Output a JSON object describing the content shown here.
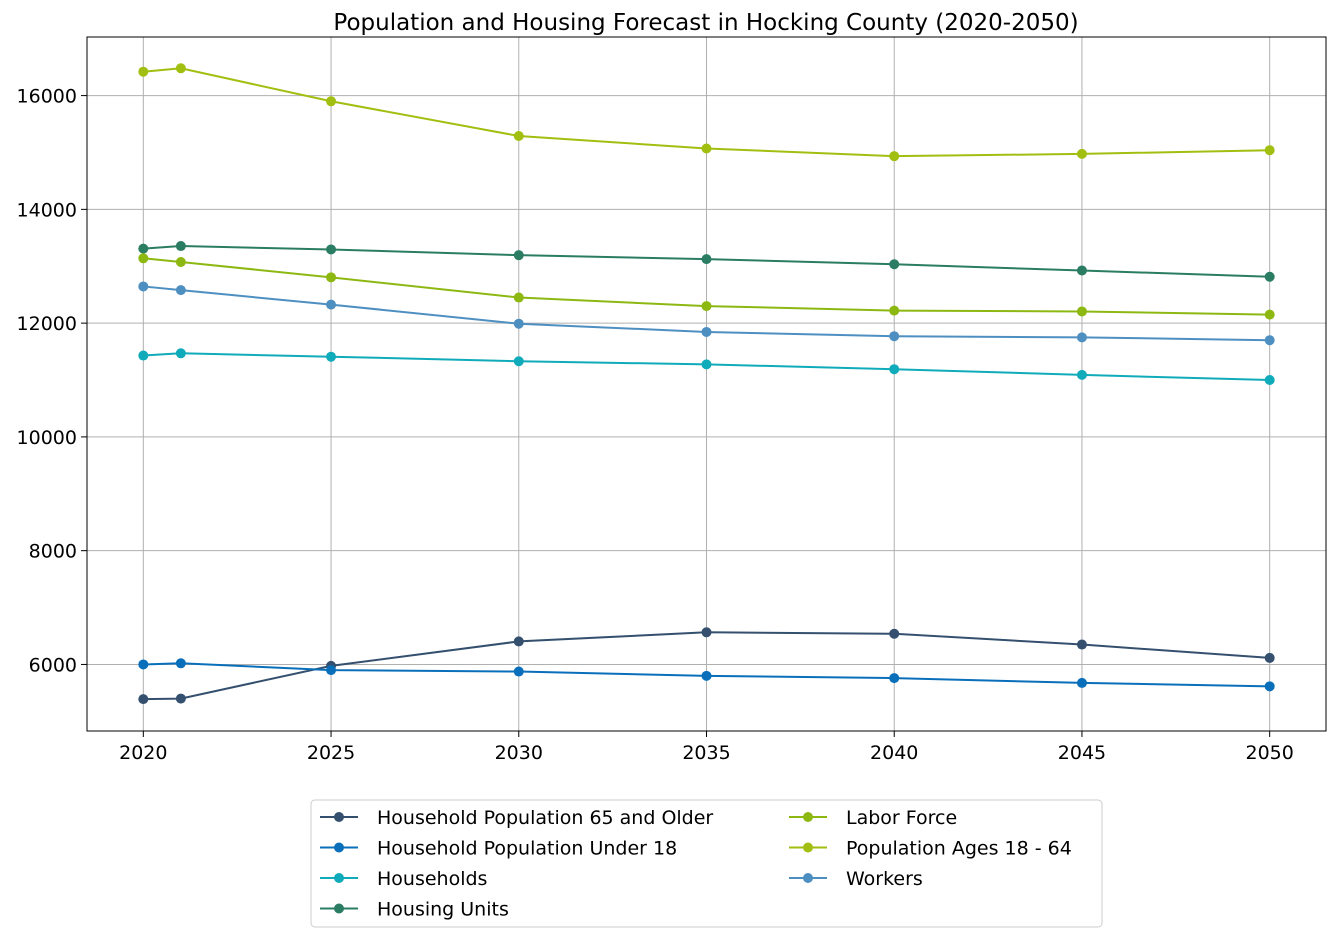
{
  "chart_data": {
    "type": "line",
    "title": "Population and Housing Forecast in Hocking County (2020-2050)",
    "xlabel": "",
    "ylabel": "",
    "x": [
      2020,
      2021,
      2025,
      2030,
      2035,
      2040,
      2045,
      2050
    ],
    "xticks": [
      2020,
      2025,
      2030,
      2035,
      2040,
      2045,
      2050
    ],
    "yticks": [
      6000,
      8000,
      10000,
      12000,
      14000,
      16000
    ],
    "xlim": [
      2018.5,
      2051.5
    ],
    "ylim": [
      4830,
      17030
    ],
    "grid": true,
    "legend_position": "bottom-center",
    "legend_columns": 2,
    "series": [
      {
        "name": "Household Population 65 and Older",
        "color": "#34506e",
        "values": [
          5390,
          5400,
          5975,
          6405,
          6565,
          6540,
          6350,
          6115
        ]
      },
      {
        "name": "Household Population Under 18",
        "color": "#0a6fba",
        "values": [
          6000,
          6020,
          5900,
          5875,
          5800,
          5760,
          5675,
          5615
        ]
      },
      {
        "name": "Households",
        "color": "#10abbb",
        "values": [
          11430,
          11470,
          11410,
          11330,
          11275,
          11190,
          11090,
          11000
        ]
      },
      {
        "name": "Housing Units",
        "color": "#2a7c63",
        "values": [
          13310,
          13355,
          13295,
          13195,
          13125,
          13035,
          12925,
          12815
        ]
      },
      {
        "name": "Labor Force",
        "color": "#8db812",
        "values": [
          13140,
          13075,
          12805,
          12450,
          12300,
          12220,
          12205,
          12150
        ]
      },
      {
        "name": "Population Ages 18 - 64",
        "color": "#a1bf10",
        "values": [
          16420,
          16480,
          15900,
          15290,
          15070,
          14935,
          14975,
          15040
        ]
      },
      {
        "name": "Workers",
        "color": "#4e8fc2",
        "values": [
          12645,
          12580,
          12325,
          11990,
          11845,
          11770,
          11750,
          11700
        ]
      }
    ]
  }
}
